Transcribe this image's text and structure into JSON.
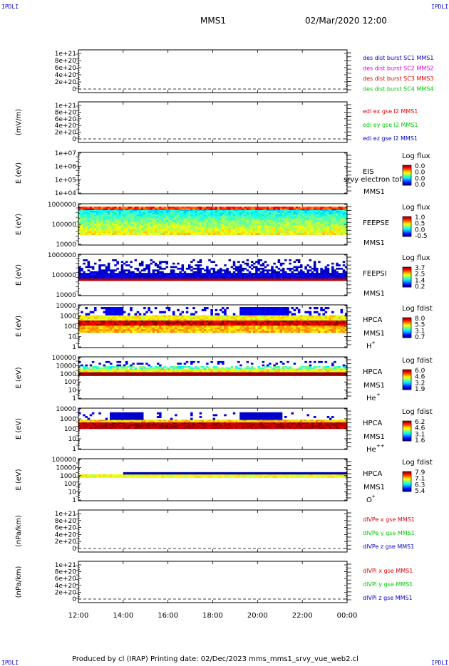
{
  "corners": {
    "tl": "IPDLI",
    "tr": "IPDLI",
    "bl": "IPDLI",
    "br": "IPDLI"
  },
  "header": {
    "title": "MMS1",
    "datetime": "02/Mar/2020 12:00"
  },
  "footer": {
    "text": "Produced by cl (IRAP)   Printing date: 02/Dec/2023   mms_mms1_srvy_vue_web2.cl"
  },
  "colors": {
    "red": "#e00000",
    "magenta": "#e000e0",
    "green": "#00c800",
    "blue": "#0000c8",
    "frame": "#000000"
  },
  "chart_data": {
    "type": "heatmap",
    "x_ticks": [
      "12:00",
      "14:00",
      "16:00",
      "18:00",
      "20:00",
      "22:00",
      "00:00"
    ],
    "xlim": [
      "02/Mar/2020 12:00",
      "03/Mar/2020 00:00"
    ],
    "panels": [
      {
        "id": "p1",
        "type": "line",
        "ylabel": "",
        "yticks": [
          "1e+21",
          "8e+20",
          "6e+20",
          "4e+20",
          "2e+20",
          "0"
        ],
        "ylim": [
          0,
          1e+21
        ],
        "baseline": 0,
        "legend": [
          {
            "text": "des dist burst SC1 MMS1",
            "color": "#0000c8"
          },
          {
            "text": "des dist burst SC2 MMS2",
            "color": "#e000e0"
          },
          {
            "text": "des dist burst SC3 MMS3",
            "color": "#e00000"
          },
          {
            "text": "des dist burst SC4 MMS4",
            "color": "#00c800"
          }
        ]
      },
      {
        "id": "p2",
        "type": "line",
        "ylabel": "(mV/m)",
        "yticks": [
          "1e+21",
          "8e+20",
          "6e+20",
          "4e+20",
          "2e+20",
          "0"
        ],
        "ylim": [
          0,
          1e+21
        ],
        "baseline": 0,
        "legend": [
          {
            "text": "edi ex gse l2 MMS1",
            "color": "#e00000"
          },
          {
            "text": "edi ey gse l2 MMS1",
            "color": "#00c800"
          },
          {
            "text": "edi ez gse l2 MMS1",
            "color": "#0000c8"
          }
        ]
      },
      {
        "id": "p3",
        "type": "spectrogram",
        "ylabel": "E (eV)",
        "yticks": [
          "1e+07",
          "1e+06",
          "1e+05",
          "1e+04"
        ],
        "ylim": [
          10000.0,
          10000000.0
        ],
        "scale": "log",
        "labels": [
          "EIS",
          "MMS1"
        ],
        "overlay": "srvy electron tof",
        "cbar": {
          "title": "Log flux",
          "ticks": [
            "0.0",
            "0.0",
            "0.0",
            "0.0"
          ]
        }
      },
      {
        "id": "p4",
        "type": "spectrogram",
        "ylabel": "E (eV)",
        "yticks": [
          "1000000",
          "100000",
          "10000"
        ],
        "ylim": [
          10000.0,
          1000000.0
        ],
        "scale": "log",
        "labels": [
          "FEEPSE",
          "MMS1"
        ],
        "cbar": {
          "title": "Log flux",
          "ticks": [
            "1.0",
            "0.5",
            "0.0",
            "-0.5"
          ]
        }
      },
      {
        "id": "p5",
        "type": "spectrogram",
        "ylabel": "E (eV)",
        "yticks": [
          "1000000",
          "100000",
          "10000"
        ],
        "ylim": [
          10000.0,
          1000000.0
        ],
        "scale": "log",
        "labels": [
          "FEEPSI",
          "MMS1"
        ],
        "cbar": {
          "title": "Log flux",
          "ticks": [
            "3.7",
            "2.5",
            "1.4",
            "0.2"
          ]
        }
      },
      {
        "id": "p6",
        "type": "spectrogram",
        "ylabel": "E (eV)",
        "yticks": [
          "10000",
          "1000",
          "100",
          "10",
          "1"
        ],
        "ylim": [
          1,
          20000.0
        ],
        "scale": "log",
        "labels": [
          "HPCA",
          "MMS1"
        ],
        "species": "H",
        "charge": "+",
        "cbar": {
          "title": "Log fdist",
          "ticks": [
            "8.0",
            "5.5",
            "3.1",
            "0.7"
          ]
        }
      },
      {
        "id": "p7",
        "type": "spectrogram",
        "ylabel": "E (eV)",
        "yticks": [
          "100000",
          "10000",
          "1000",
          "100",
          "10",
          "1"
        ],
        "ylim": [
          1,
          100000.0
        ],
        "scale": "log",
        "labels": [
          "HPCA",
          "MMS1"
        ],
        "species": "He",
        "charge": "+",
        "cbar": {
          "title": "Log fdist",
          "ticks": [
            "6.0",
            "4.6",
            "3.2",
            "1.9"
          ]
        }
      },
      {
        "id": "p8",
        "type": "spectrogram",
        "ylabel": "E (eV)",
        "yticks": [
          "10000",
          "1000",
          "100",
          "10",
          "1"
        ],
        "ylim": [
          1,
          20000.0
        ],
        "scale": "log",
        "labels": [
          "HPCA",
          "MMS1"
        ],
        "species": "He",
        "charge": "++",
        "cbar": {
          "title": "Log fdist",
          "ticks": [
            "6.2",
            "4.6",
            "3.1",
            "1.6"
          ]
        }
      },
      {
        "id": "p9",
        "type": "spectrogram",
        "ylabel": "E (eV)",
        "yticks": [
          "100000",
          "10000",
          "1000",
          "100",
          "10",
          "1"
        ],
        "ylim": [
          1,
          100000.0
        ],
        "scale": "log",
        "labels": [
          "HPCA",
          "MMS1"
        ],
        "species": "O",
        "charge": "+",
        "cbar": {
          "title": "Log fdist",
          "ticks": [
            "7.9",
            "7.1",
            "6.3",
            "5.4"
          ]
        }
      },
      {
        "id": "p10",
        "type": "line",
        "ylabel": "(nPa/km)",
        "yticks": [
          "1e+21",
          "8e+20",
          "6e+20",
          "4e+20",
          "2e+20",
          "0"
        ],
        "ylim": [
          0,
          1e+21
        ],
        "baseline": 0,
        "legend": [
          {
            "text": "dIVPe x gse MMS1",
            "color": "#e00000"
          },
          {
            "text": "dIVPe y gse MMS1",
            "color": "#00c800"
          },
          {
            "text": "dIVPe z gse MMS1",
            "color": "#0000c8"
          }
        ]
      },
      {
        "id": "p11",
        "type": "line",
        "ylabel": "(nPa/km)",
        "yticks": [
          "1e+21",
          "8e+20",
          "6e+20",
          "4e+20",
          "2e+20",
          "0"
        ],
        "ylim": [
          0,
          1e+21
        ],
        "baseline": 0,
        "legend": [
          {
            "text": "dIVPi x gse MMS1",
            "color": "#e00000"
          },
          {
            "text": "dIVPi y gse MMS1",
            "color": "#00c800"
          },
          {
            "text": "dIVPi z gse MMS1",
            "color": "#0000c8"
          }
        ]
      }
    ]
  }
}
